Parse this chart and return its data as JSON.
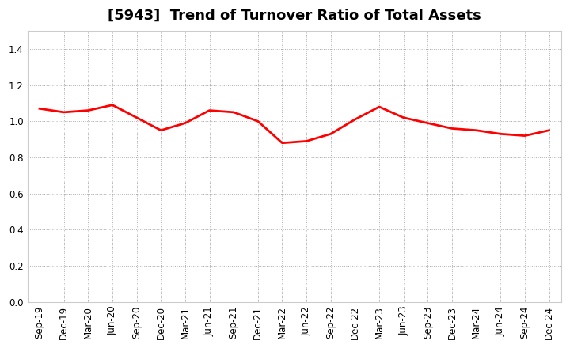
{
  "title": "[5943]  Trend of Turnover Ratio of Total Assets",
  "labels": [
    "Sep-19",
    "Dec-19",
    "Mar-20",
    "Jun-20",
    "Sep-20",
    "Dec-20",
    "Mar-21",
    "Jun-21",
    "Sep-21",
    "Dec-21",
    "Mar-22",
    "Jun-22",
    "Sep-22",
    "Dec-22",
    "Mar-23",
    "Jun-23",
    "Sep-23",
    "Dec-23",
    "Mar-24",
    "Jun-24",
    "Sep-24",
    "Dec-24"
  ],
  "values": [
    1.07,
    1.05,
    1.06,
    1.09,
    1.02,
    0.95,
    0.99,
    1.06,
    1.05,
    1.0,
    0.88,
    0.89,
    0.93,
    1.01,
    1.08,
    1.02,
    0.99,
    0.96,
    0.95,
    0.93,
    0.92,
    0.95
  ],
  "line_color": "#ff0000",
  "line_width": 2.0,
  "ylim": [
    0.0,
    1.5
  ],
  "yticks": [
    0.0,
    0.2,
    0.4,
    0.6,
    0.8,
    1.0,
    1.2,
    1.4
  ],
  "background_color": "#ffffff",
  "grid_color": "#aaaaaa",
  "title_fontsize": 13,
  "tick_fontsize": 8.5
}
